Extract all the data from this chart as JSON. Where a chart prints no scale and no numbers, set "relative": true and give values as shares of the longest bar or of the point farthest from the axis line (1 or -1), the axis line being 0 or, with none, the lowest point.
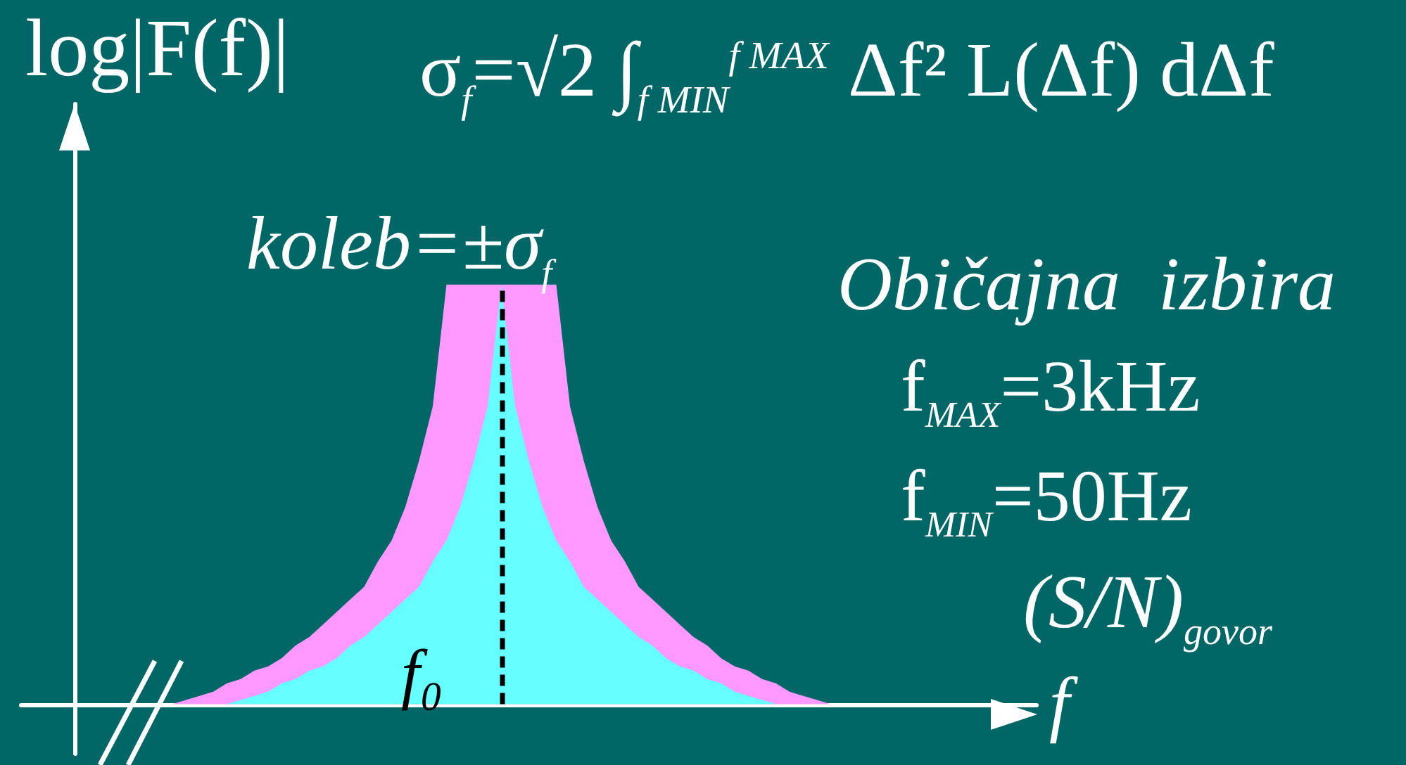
{
  "chart_data": {
    "type": "area",
    "relative": true,
    "xlabel": "f",
    "ylabel": "log|F(f)|",
    "categories": [
      null,
      null,
      null,
      null,
      null,
      null,
      null,
      null,
      null,
      null,
      null,
      null,
      null,
      null,
      null,
      null,
      null,
      null,
      null,
      null,
      null,
      null,
      null,
      null,
      null,
      null,
      null,
      null,
      null,
      null,
      null,
      null,
      null,
      null,
      null,
      null,
      null,
      null,
      null,
      null,
      null,
      null,
      null,
      null,
      null,
      null,
      null,
      null,
      null,
      null,
      null,
      null,
      null,
      null,
      null,
      null,
      null,
      null,
      null,
      null,
      null,
      null,
      null,
      null,
      null,
      null,
      null,
      null,
      null,
      null,
      null,
      null,
      null,
      null,
      null
    ],
    "series": [
      {
        "color": "#ff99ff",
        "values": [
          null,
          null,
          null,
          null,
          null,
          null,
          null,
          null,
          null,
          null,
          null,
          0,
          0.01,
          0.02,
          0.03,
          0.05,
          0.06,
          0.08,
          0.09,
          0.11,
          0.14,
          0.16,
          0.19,
          0.22,
          0.25,
          0.28,
          0.34,
          0.39,
          0.47,
          0.58,
          0.71,
          1,
          1,
          1,
          1,
          1,
          1,
          1,
          1,
          1,
          0.71,
          0.58,
          0.47,
          0.39,
          0.34,
          0.28,
          0.25,
          0.22,
          0.19,
          0.16,
          0.14,
          0.11,
          0.09,
          0.08,
          0.06,
          0.05,
          0.03,
          0.02,
          0.01,
          0,
          null,
          null,
          null,
          null,
          null,
          null,
          null,
          null,
          null,
          null,
          null,
          null,
          null,
          null,
          null
        ]
      },
      {
        "color": "#66ffff",
        "values": [
          null,
          null,
          null,
          null,
          null,
          null,
          null,
          null,
          null,
          null,
          null,
          null,
          null,
          null,
          null,
          0,
          0.01,
          0.02,
          0.03,
          0.05,
          0.06,
          0.08,
          0.09,
          0.11,
          0.14,
          0.16,
          0.19,
          0.22,
          0.25,
          0.28,
          0.34,
          0.39,
          0.47,
          0.58,
          0.71,
          1,
          0.71,
          0.58,
          0.47,
          0.39,
          0.34,
          0.28,
          0.25,
          0.22,
          0.19,
          0.16,
          0.14,
          0.11,
          0.09,
          0.08,
          0.06,
          0.05,
          0.03,
          0.02,
          0.01,
          0,
          null,
          null,
          null,
          null,
          null,
          null,
          null,
          null,
          null,
          null,
          null,
          null,
          null,
          null,
          null,
          null,
          null,
          null,
          null
        ]
      }
    ],
    "annotations": [
      "σ$_{f}$=√2 ∫$_{f MIN}$$^{f MAX}$ Δf² L(Δf) dΔf",
      "koleb=±σ$_{f}$",
      "Običajna  izbira",
      "f$_{MAX}$=3kHz",
      "f$_{MIN}$=50Hz",
      "(S/N)$_{govor}$",
      "f₀"
    ]
  }
}
